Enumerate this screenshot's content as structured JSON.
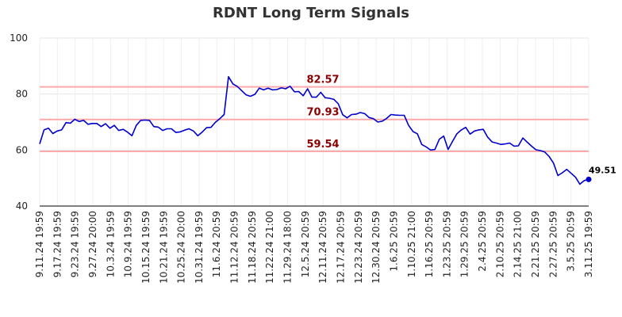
{
  "chart_data": {
    "type": "line",
    "title": "RDNT Long Term Signals",
    "xlabel": "",
    "ylabel": "",
    "ylim": [
      40,
      100
    ],
    "yticks": [
      40,
      60,
      80,
      100
    ],
    "grid": true,
    "line_color": "#0000cc",
    "level_color": "#ffaaaa",
    "level_label_color": "#8b0000",
    "levels": [
      {
        "value": 82.57,
        "label": "82.57"
      },
      {
        "value": 70.93,
        "label": "70.93"
      },
      {
        "value": 59.54,
        "label": "59.54"
      }
    ],
    "xtick_labels": [
      "9.11.24 19:59",
      "9.17.24 19:59",
      "9.23.24 19:59",
      "9.27.24 20:00",
      "10.3.24 19:59",
      "10.9.24 19:59",
      "10.15.24 19:59",
      "10.21.24 19:59",
      "10.25.24 20:00",
      "10.31.24 19:59",
      "11.6.24 20:59",
      "11.12.24 20:59",
      "11.18.24 20:59",
      "11.22.24 21:00",
      "11.29.24 18:00",
      "12.5.24 20:59",
      "12.11.24 20:59",
      "12.17.24 20:59",
      "12.23.24 20:59",
      "12.30.24 20:59",
      "1.6.25 20:59",
      "1.10.25 21:00",
      "1.16.25 20:59",
      "1.23.25 20:59",
      "1.29.25 20:59",
      "2.4.25 20:59",
      "2.10.25 20:59",
      "2.14.25 21:00",
      "2.21.25 20:59",
      "2.27.25 20:59",
      "3.5.25 20:59",
      "3.11.25 19:59"
    ],
    "values": [
      62.2,
      67.2,
      67.8,
      65.9,
      66.8,
      67.2,
      69.8,
      69.6,
      71.0,
      70.2,
      70.6,
      69.2,
      69.5,
      69.5,
      68.4,
      69.4,
      67.8,
      68.8,
      67.0,
      67.4,
      66.4,
      65.1,
      68.8,
      70.6,
      70.7,
      70.6,
      68.4,
      68.2,
      67.0,
      67.6,
      67.6,
      66.3,
      66.5,
      67.1,
      67.6,
      66.8,
      65.1,
      66.4,
      68.0,
      68.1,
      69.9,
      71.2,
      72.7,
      86.2,
      83.6,
      82.7,
      81.2,
      79.7,
      79.2,
      79.9,
      82.1,
      81.5,
      82.1,
      81.5,
      81.6,
      82.2,
      81.9,
      82.8,
      80.8,
      80.9,
      79.4,
      81.9,
      78.9,
      78.9,
      80.6,
      78.7,
      78.5,
      78.1,
      76.5,
      72.6,
      71.5,
      72.7,
      72.8,
      73.4,
      73.0,
      71.6,
      71.2,
      70.0,
      70.3,
      71.3,
      72.7,
      72.5,
      72.4,
      72.4,
      68.8,
      66.6,
      65.8,
      62.0,
      61.1,
      60.0,
      60.2,
      63.9,
      65.0,
      60.2,
      63.1,
      65.8,
      67.2,
      68.1,
      65.7,
      66.8,
      67.2,
      67.4,
      64.6,
      62.9,
      62.5,
      62.0,
      62.2,
      62.5,
      61.4,
      61.5,
      64.3,
      62.8,
      61.4,
      60.1,
      59.8,
      59.3,
      57.7,
      55.3,
      50.9,
      51.9,
      53.1,
      51.7,
      50.3,
      47.8,
      49.1,
      49.51
    ],
    "last_point": {
      "value": 49.51,
      "label": "49.51"
    }
  }
}
